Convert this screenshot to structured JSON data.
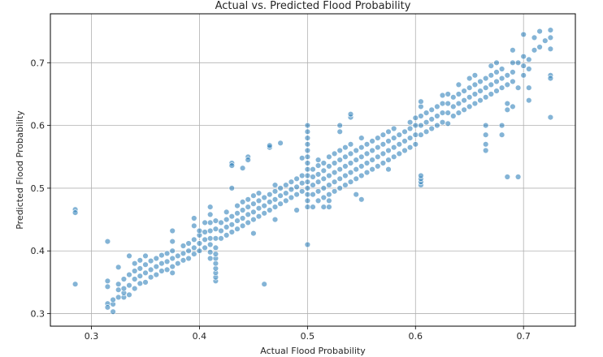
{
  "chart_data": {
    "type": "scatter",
    "title": "Actual vs. Predicted Flood Probability",
    "xlabel": "Actual Flood Probability",
    "ylabel": "Predicted Flood Probability",
    "xlim": [
      0.262,
      0.748
    ],
    "ylim": [
      0.28,
      0.778
    ],
    "xticks": [
      0.3,
      0.4,
      0.5,
      0.6,
      0.7
    ],
    "yticks": [
      0.3,
      0.4,
      0.5,
      0.6,
      0.7
    ],
    "xtick_labels": [
      "0.3",
      "0.4",
      "0.5",
      "0.6",
      "0.7"
    ],
    "ytick_labels": [
      "0.3",
      "0.4",
      "0.5",
      "0.6",
      "0.7"
    ],
    "grid": true,
    "marker_color": "#1f77b4",
    "marker_edge_color": "#ffffff",
    "points": [
      [
        0.285,
        0.466
      ],
      [
        0.285,
        0.461
      ],
      [
        0.285,
        0.347
      ],
      [
        0.315,
        0.415
      ],
      [
        0.315,
        0.352
      ],
      [
        0.315,
        0.343
      ],
      [
        0.315,
        0.316
      ],
      [
        0.315,
        0.31
      ],
      [
        0.32,
        0.303
      ],
      [
        0.32,
        0.315
      ],
      [
        0.32,
        0.322
      ],
      [
        0.325,
        0.326
      ],
      [
        0.325,
        0.338
      ],
      [
        0.325,
        0.347
      ],
      [
        0.325,
        0.374
      ],
      [
        0.33,
        0.326
      ],
      [
        0.33,
        0.333
      ],
      [
        0.33,
        0.34
      ],
      [
        0.33,
        0.355
      ],
      [
        0.335,
        0.33
      ],
      [
        0.335,
        0.345
      ],
      [
        0.335,
        0.362
      ],
      [
        0.335,
        0.392
      ],
      [
        0.34,
        0.34
      ],
      [
        0.34,
        0.355
      ],
      [
        0.34,
        0.368
      ],
      [
        0.34,
        0.38
      ],
      [
        0.345,
        0.348
      ],
      [
        0.345,
        0.36
      ],
      [
        0.345,
        0.372
      ],
      [
        0.345,
        0.385
      ],
      [
        0.35,
        0.35
      ],
      [
        0.35,
        0.365
      ],
      [
        0.35,
        0.378
      ],
      [
        0.35,
        0.392
      ],
      [
        0.355,
        0.358
      ],
      [
        0.355,
        0.37
      ],
      [
        0.355,
        0.384
      ],
      [
        0.36,
        0.362
      ],
      [
        0.36,
        0.375
      ],
      [
        0.36,
        0.388
      ],
      [
        0.365,
        0.368
      ],
      [
        0.365,
        0.38
      ],
      [
        0.365,
        0.393
      ],
      [
        0.37,
        0.37
      ],
      [
        0.37,
        0.383
      ],
      [
        0.37,
        0.396
      ],
      [
        0.375,
        0.375
      ],
      [
        0.375,
        0.388
      ],
      [
        0.375,
        0.4
      ],
      [
        0.375,
        0.415
      ],
      [
        0.375,
        0.432
      ],
      [
        0.375,
        0.365
      ],
      [
        0.38,
        0.38
      ],
      [
        0.38,
        0.392
      ],
      [
        0.385,
        0.385
      ],
      [
        0.385,
        0.396
      ],
      [
        0.385,
        0.408
      ],
      [
        0.39,
        0.388
      ],
      [
        0.39,
        0.4
      ],
      [
        0.39,
        0.412
      ],
      [
        0.395,
        0.395
      ],
      [
        0.395,
        0.405
      ],
      [
        0.395,
        0.418
      ],
      [
        0.395,
        0.44
      ],
      [
        0.395,
        0.452
      ],
      [
        0.4,
        0.4
      ],
      [
        0.4,
        0.412
      ],
      [
        0.4,
        0.425
      ],
      [
        0.4,
        0.432
      ],
      [
        0.405,
        0.405
      ],
      [
        0.405,
        0.418
      ],
      [
        0.405,
        0.43
      ],
      [
        0.405,
        0.445
      ],
      [
        0.41,
        0.41
      ],
      [
        0.41,
        0.42
      ],
      [
        0.41,
        0.432
      ],
      [
        0.41,
        0.445
      ],
      [
        0.41,
        0.458
      ],
      [
        0.41,
        0.47
      ],
      [
        0.41,
        0.398
      ],
      [
        0.41,
        0.388
      ],
      [
        0.415,
        0.352
      ],
      [
        0.415,
        0.358
      ],
      [
        0.415,
        0.365
      ],
      [
        0.415,
        0.372
      ],
      [
        0.415,
        0.38
      ],
      [
        0.415,
        0.388
      ],
      [
        0.415,
        0.395
      ],
      [
        0.415,
        0.405
      ],
      [
        0.415,
        0.42
      ],
      [
        0.415,
        0.435
      ],
      [
        0.415,
        0.448
      ],
      [
        0.42,
        0.42
      ],
      [
        0.42,
        0.432
      ],
      [
        0.42,
        0.445
      ],
      [
        0.425,
        0.425
      ],
      [
        0.425,
        0.438
      ],
      [
        0.425,
        0.45
      ],
      [
        0.425,
        0.462
      ],
      [
        0.43,
        0.43
      ],
      [
        0.43,
        0.442
      ],
      [
        0.43,
        0.455
      ],
      [
        0.43,
        0.5
      ],
      [
        0.43,
        0.54
      ],
      [
        0.43,
        0.536
      ],
      [
        0.435,
        0.435
      ],
      [
        0.435,
        0.448
      ],
      [
        0.435,
        0.46
      ],
      [
        0.435,
        0.472
      ],
      [
        0.44,
        0.44
      ],
      [
        0.44,
        0.452
      ],
      [
        0.44,
        0.465
      ],
      [
        0.44,
        0.478
      ],
      [
        0.44,
        0.532
      ],
      [
        0.445,
        0.445
      ],
      [
        0.445,
        0.458
      ],
      [
        0.445,
        0.47
      ],
      [
        0.445,
        0.482
      ],
      [
        0.445,
        0.55
      ],
      [
        0.445,
        0.545
      ],
      [
        0.45,
        0.45
      ],
      [
        0.45,
        0.462
      ],
      [
        0.45,
        0.475
      ],
      [
        0.45,
        0.488
      ],
      [
        0.45,
        0.428
      ],
      [
        0.455,
        0.455
      ],
      [
        0.455,
        0.468
      ],
      [
        0.455,
        0.48
      ],
      [
        0.455,
        0.492
      ],
      [
        0.46,
        0.46
      ],
      [
        0.46,
        0.472
      ],
      [
        0.46,
        0.485
      ],
      [
        0.46,
        0.347
      ],
      [
        0.465,
        0.465
      ],
      [
        0.465,
        0.478
      ],
      [
        0.465,
        0.49
      ],
      [
        0.465,
        0.565
      ],
      [
        0.465,
        0.568
      ],
      [
        0.47,
        0.47
      ],
      [
        0.47,
        0.482
      ],
      [
        0.47,
        0.495
      ],
      [
        0.47,
        0.505
      ],
      [
        0.47,
        0.45
      ],
      [
        0.475,
        0.475
      ],
      [
        0.475,
        0.488
      ],
      [
        0.475,
        0.5
      ],
      [
        0.475,
        0.572
      ],
      [
        0.48,
        0.48
      ],
      [
        0.48,
        0.492
      ],
      [
        0.48,
        0.505
      ],
      [
        0.485,
        0.485
      ],
      [
        0.485,
        0.498
      ],
      [
        0.485,
        0.51
      ],
      [
        0.49,
        0.49
      ],
      [
        0.49,
        0.502
      ],
      [
        0.49,
        0.515
      ],
      [
        0.49,
        0.465
      ],
      [
        0.495,
        0.495
      ],
      [
        0.495,
        0.508
      ],
      [
        0.495,
        0.52
      ],
      [
        0.495,
        0.548
      ],
      [
        0.5,
        0.47
      ],
      [
        0.5,
        0.48
      ],
      [
        0.5,
        0.49
      ],
      [
        0.5,
        0.5
      ],
      [
        0.5,
        0.51
      ],
      [
        0.5,
        0.52
      ],
      [
        0.5,
        0.53
      ],
      [
        0.5,
        0.54
      ],
      [
        0.5,
        0.55
      ],
      [
        0.5,
        0.56
      ],
      [
        0.5,
        0.57
      ],
      [
        0.5,
        0.58
      ],
      [
        0.5,
        0.59
      ],
      [
        0.5,
        0.6
      ],
      [
        0.5,
        0.41
      ],
      [
        0.505,
        0.47
      ],
      [
        0.505,
        0.49
      ],
      [
        0.505,
        0.505
      ],
      [
        0.505,
        0.518
      ],
      [
        0.505,
        0.53
      ],
      [
        0.51,
        0.48
      ],
      [
        0.51,
        0.495
      ],
      [
        0.51,
        0.51
      ],
      [
        0.51,
        0.522
      ],
      [
        0.51,
        0.536
      ],
      [
        0.51,
        0.545
      ],
      [
        0.515,
        0.47
      ],
      [
        0.515,
        0.485
      ],
      [
        0.515,
        0.5
      ],
      [
        0.515,
        0.515
      ],
      [
        0.515,
        0.528
      ],
      [
        0.515,
        0.54
      ],
      [
        0.52,
        0.47
      ],
      [
        0.52,
        0.49
      ],
      [
        0.52,
        0.505
      ],
      [
        0.52,
        0.52
      ],
      [
        0.52,
        0.535
      ],
      [
        0.52,
        0.55
      ],
      [
        0.52,
        0.48
      ],
      [
        0.525,
        0.495
      ],
      [
        0.525,
        0.51
      ],
      [
        0.525,
        0.525
      ],
      [
        0.525,
        0.54
      ],
      [
        0.525,
        0.555
      ],
      [
        0.53,
        0.5
      ],
      [
        0.53,
        0.515
      ],
      [
        0.53,
        0.53
      ],
      [
        0.53,
        0.545
      ],
      [
        0.53,
        0.56
      ],
      [
        0.53,
        0.6
      ],
      [
        0.53,
        0.59
      ],
      [
        0.535,
        0.505
      ],
      [
        0.535,
        0.52
      ],
      [
        0.535,
        0.535
      ],
      [
        0.535,
        0.55
      ],
      [
        0.535,
        0.565
      ],
      [
        0.54,
        0.51
      ],
      [
        0.54,
        0.525
      ],
      [
        0.54,
        0.54
      ],
      [
        0.54,
        0.555
      ],
      [
        0.54,
        0.57
      ],
      [
        0.54,
        0.613
      ],
      [
        0.54,
        0.618
      ],
      [
        0.545,
        0.515
      ],
      [
        0.545,
        0.53
      ],
      [
        0.545,
        0.545
      ],
      [
        0.545,
        0.56
      ],
      [
        0.545,
        0.49
      ],
      [
        0.55,
        0.52
      ],
      [
        0.55,
        0.535
      ],
      [
        0.55,
        0.55
      ],
      [
        0.55,
        0.565
      ],
      [
        0.55,
        0.58
      ],
      [
        0.55,
        0.482
      ],
      [
        0.555,
        0.525
      ],
      [
        0.555,
        0.54
      ],
      [
        0.555,
        0.555
      ],
      [
        0.555,
        0.57
      ],
      [
        0.56,
        0.53
      ],
      [
        0.56,
        0.545
      ],
      [
        0.56,
        0.56
      ],
      [
        0.56,
        0.575
      ],
      [
        0.565,
        0.535
      ],
      [
        0.565,
        0.55
      ],
      [
        0.565,
        0.565
      ],
      [
        0.565,
        0.58
      ],
      [
        0.57,
        0.54
      ],
      [
        0.57,
        0.555
      ],
      [
        0.57,
        0.57
      ],
      [
        0.57,
        0.585
      ],
      [
        0.575,
        0.545
      ],
      [
        0.575,
        0.56
      ],
      [
        0.575,
        0.575
      ],
      [
        0.575,
        0.59
      ],
      [
        0.575,
        0.53
      ],
      [
        0.58,
        0.55
      ],
      [
        0.58,
        0.565
      ],
      [
        0.58,
        0.58
      ],
      [
        0.58,
        0.595
      ],
      [
        0.585,
        0.555
      ],
      [
        0.585,
        0.57
      ],
      [
        0.585,
        0.585
      ],
      [
        0.59,
        0.56
      ],
      [
        0.59,
        0.575
      ],
      [
        0.59,
        0.59
      ],
      [
        0.595,
        0.565
      ],
      [
        0.595,
        0.58
      ],
      [
        0.595,
        0.595
      ],
      [
        0.595,
        0.605
      ],
      [
        0.6,
        0.57
      ],
      [
        0.6,
        0.585
      ],
      [
        0.6,
        0.6
      ],
      [
        0.6,
        0.612
      ],
      [
        0.605,
        0.505
      ],
      [
        0.605,
        0.51
      ],
      [
        0.605,
        0.515
      ],
      [
        0.605,
        0.52
      ],
      [
        0.605,
        0.585
      ],
      [
        0.605,
        0.6
      ],
      [
        0.605,
        0.615
      ],
      [
        0.605,
        0.63
      ],
      [
        0.605,
        0.638
      ],
      [
        0.61,
        0.59
      ],
      [
        0.61,
        0.605
      ],
      [
        0.61,
        0.62
      ],
      [
        0.615,
        0.595
      ],
      [
        0.615,
        0.61
      ],
      [
        0.615,
        0.625
      ],
      [
        0.62,
        0.6
      ],
      [
        0.62,
        0.615
      ],
      [
        0.62,
        0.63
      ],
      [
        0.625,
        0.605
      ],
      [
        0.625,
        0.62
      ],
      [
        0.625,
        0.635
      ],
      [
        0.625,
        0.648
      ],
      [
        0.63,
        0.603
      ],
      [
        0.63,
        0.62
      ],
      [
        0.63,
        0.635
      ],
      [
        0.63,
        0.65
      ],
      [
        0.635,
        0.615
      ],
      [
        0.635,
        0.63
      ],
      [
        0.635,
        0.645
      ],
      [
        0.64,
        0.62
      ],
      [
        0.64,
        0.635
      ],
      [
        0.64,
        0.65
      ],
      [
        0.64,
        0.665
      ],
      [
        0.645,
        0.625
      ],
      [
        0.645,
        0.64
      ],
      [
        0.645,
        0.655
      ],
      [
        0.65,
        0.63
      ],
      [
        0.65,
        0.645
      ],
      [
        0.65,
        0.66
      ],
      [
        0.65,
        0.675
      ],
      [
        0.655,
        0.635
      ],
      [
        0.655,
        0.65
      ],
      [
        0.655,
        0.665
      ],
      [
        0.655,
        0.68
      ],
      [
        0.66,
        0.64
      ],
      [
        0.66,
        0.655
      ],
      [
        0.66,
        0.67
      ],
      [
        0.665,
        0.56
      ],
      [
        0.665,
        0.57
      ],
      [
        0.665,
        0.585
      ],
      [
        0.665,
        0.6
      ],
      [
        0.665,
        0.645
      ],
      [
        0.665,
        0.66
      ],
      [
        0.665,
        0.675
      ],
      [
        0.67,
        0.65
      ],
      [
        0.67,
        0.665
      ],
      [
        0.67,
        0.68
      ],
      [
        0.67,
        0.695
      ],
      [
        0.675,
        0.655
      ],
      [
        0.675,
        0.67
      ],
      [
        0.675,
        0.685
      ],
      [
        0.675,
        0.7
      ],
      [
        0.68,
        0.66
      ],
      [
        0.68,
        0.675
      ],
      [
        0.68,
        0.69
      ],
      [
        0.68,
        0.585
      ],
      [
        0.68,
        0.6
      ],
      [
        0.685,
        0.518
      ],
      [
        0.685,
        0.625
      ],
      [
        0.685,
        0.635
      ],
      [
        0.685,
        0.665
      ],
      [
        0.685,
        0.68
      ],
      [
        0.69,
        0.67
      ],
      [
        0.69,
        0.685
      ],
      [
        0.69,
        0.7
      ],
      [
        0.69,
        0.72
      ],
      [
        0.69,
        0.63
      ],
      [
        0.695,
        0.518
      ],
      [
        0.695,
        0.66
      ],
      [
        0.695,
        0.7
      ],
      [
        0.7,
        0.68
      ],
      [
        0.7,
        0.695
      ],
      [
        0.7,
        0.71
      ],
      [
        0.7,
        0.745
      ],
      [
        0.705,
        0.64
      ],
      [
        0.705,
        0.66
      ],
      [
        0.705,
        0.69
      ],
      [
        0.705,
        0.705
      ],
      [
        0.71,
        0.72
      ],
      [
        0.71,
        0.74
      ],
      [
        0.715,
        0.725
      ],
      [
        0.715,
        0.75
      ],
      [
        0.72,
        0.735
      ],
      [
        0.725,
        0.752
      ],
      [
        0.725,
        0.74
      ],
      [
        0.725,
        0.722
      ],
      [
        0.725,
        0.68
      ],
      [
        0.725,
        0.675
      ],
      [
        0.725,
        0.613
      ]
    ]
  }
}
